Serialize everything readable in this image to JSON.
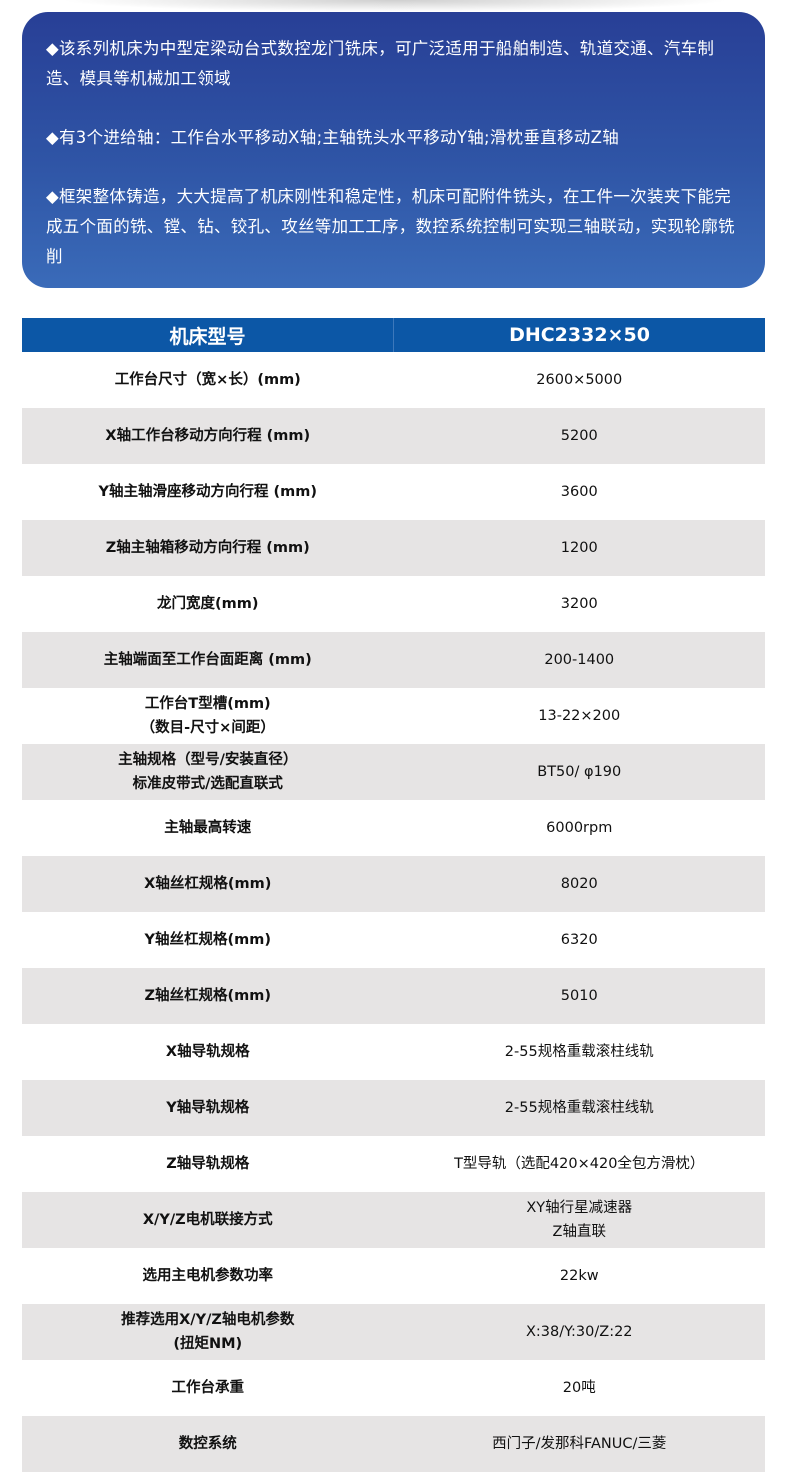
{
  "intro": [
    "◆该系列机床为中型定梁动台式数控龙门铣床，可广泛适用于船舶制造、轨道交通、汽车制造、模具等机械加工领域",
    "◆有3个进给轴：工作台水平移动X轴;主轴铣头水平移动Y轴;滑枕垂直移动Z轴",
    "◆框架整体铸造，大大提高了机床刚性和稳定性，机床可配附件铣头，在工件一次装夹下能完成五个面的铣、镗、钻、铰孔、攻丝等加工工序，数控系统控制可实现三轴联动，实现轮廓铣削"
  ],
  "table": {
    "header": [
      "机床型号",
      "DHC2332×50"
    ],
    "rows": [
      [
        "工作台尺寸（宽×长）(mm)",
        "2600×5000"
      ],
      [
        "X轴工作台移动方向行程 (mm)",
        "5200"
      ],
      [
        "Y轴主轴滑座移动方向行程 (mm)",
        "3600"
      ],
      [
        "Z轴主轴箱移动方向行程 (mm)",
        "1200"
      ],
      [
        "龙门宽度(mm)",
        "3200"
      ],
      [
        "主轴端面至工作台面距离 (mm)",
        "200-1400"
      ],
      [
        "工作台T型槽(mm)\n（数目-尺寸×间距）",
        "13-22×200"
      ],
      [
        "主轴规格（型号/安装直径）\n标准皮带式/选配直联式",
        "BT50/ φ190"
      ],
      [
        "主轴最高转速",
        "6000rpm"
      ],
      [
        "X轴丝杠规格(mm)",
        "8020"
      ],
      [
        "Y轴丝杠规格(mm)",
        "6320"
      ],
      [
        "Z轴丝杠规格(mm)",
        "5010"
      ],
      [
        "X轴导轨规格",
        "2-55规格重载滚柱线轨"
      ],
      [
        "Y轴导轨规格",
        "2-55规格重载滚柱线轨"
      ],
      [
        "Z轴导轨规格",
        "T型导轨（选配420×420全包方滑枕）"
      ],
      [
        "X/Y/Z电机联接方式",
        "XY轴行星减速器\nZ轴直联"
      ],
      [
        "选用主电机参数功率",
        "22kw"
      ],
      [
        "推荐选用X/Y/Z轴电机参数\n(扭矩NM)",
        "X:38/Y:30/Z:22"
      ],
      [
        "工作台承重",
        "20吨"
      ],
      [
        "数控系统",
        "西门子/发那科FANUC/三菱"
      ]
    ]
  }
}
